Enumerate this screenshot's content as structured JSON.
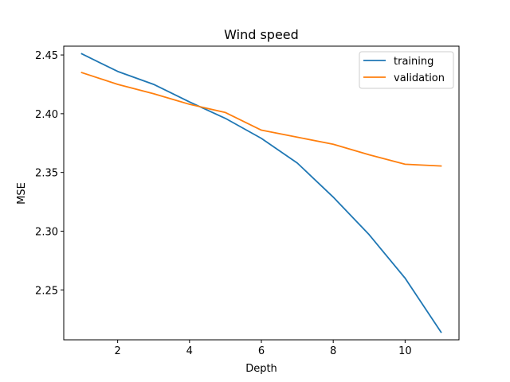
{
  "chart_data": {
    "type": "line",
    "title": "Wind speed",
    "xlabel": "Depth",
    "ylabel": "MSE",
    "x": [
      1,
      2,
      3,
      4,
      5,
      6,
      7,
      8,
      9,
      10,
      11
    ],
    "xlim": [
      0.5,
      11.5
    ],
    "ylim": [
      2.2075,
      2.4575
    ],
    "xticks": [
      2,
      4,
      6,
      8,
      10
    ],
    "yticks": [
      2.25,
      2.3,
      2.35,
      2.4,
      2.45
    ],
    "ytick_labels": [
      "2.25",
      "2.30",
      "2.35",
      "2.40",
      "2.45"
    ],
    "grid": false,
    "legend_position": "top-right",
    "series": [
      {
        "name": "training",
        "color": "#1f77b4",
        "values": [
          2.451,
          2.436,
          2.425,
          2.41,
          2.396,
          2.379,
          2.358,
          2.329,
          2.297,
          2.26,
          2.214
        ]
      },
      {
        "name": "validation",
        "color": "#ff7f0e",
        "values": [
          2.435,
          2.425,
          2.417,
          2.408,
          2.401,
          2.386,
          2.38,
          2.374,
          2.365,
          2.357,
          2.3555
        ]
      }
    ]
  }
}
